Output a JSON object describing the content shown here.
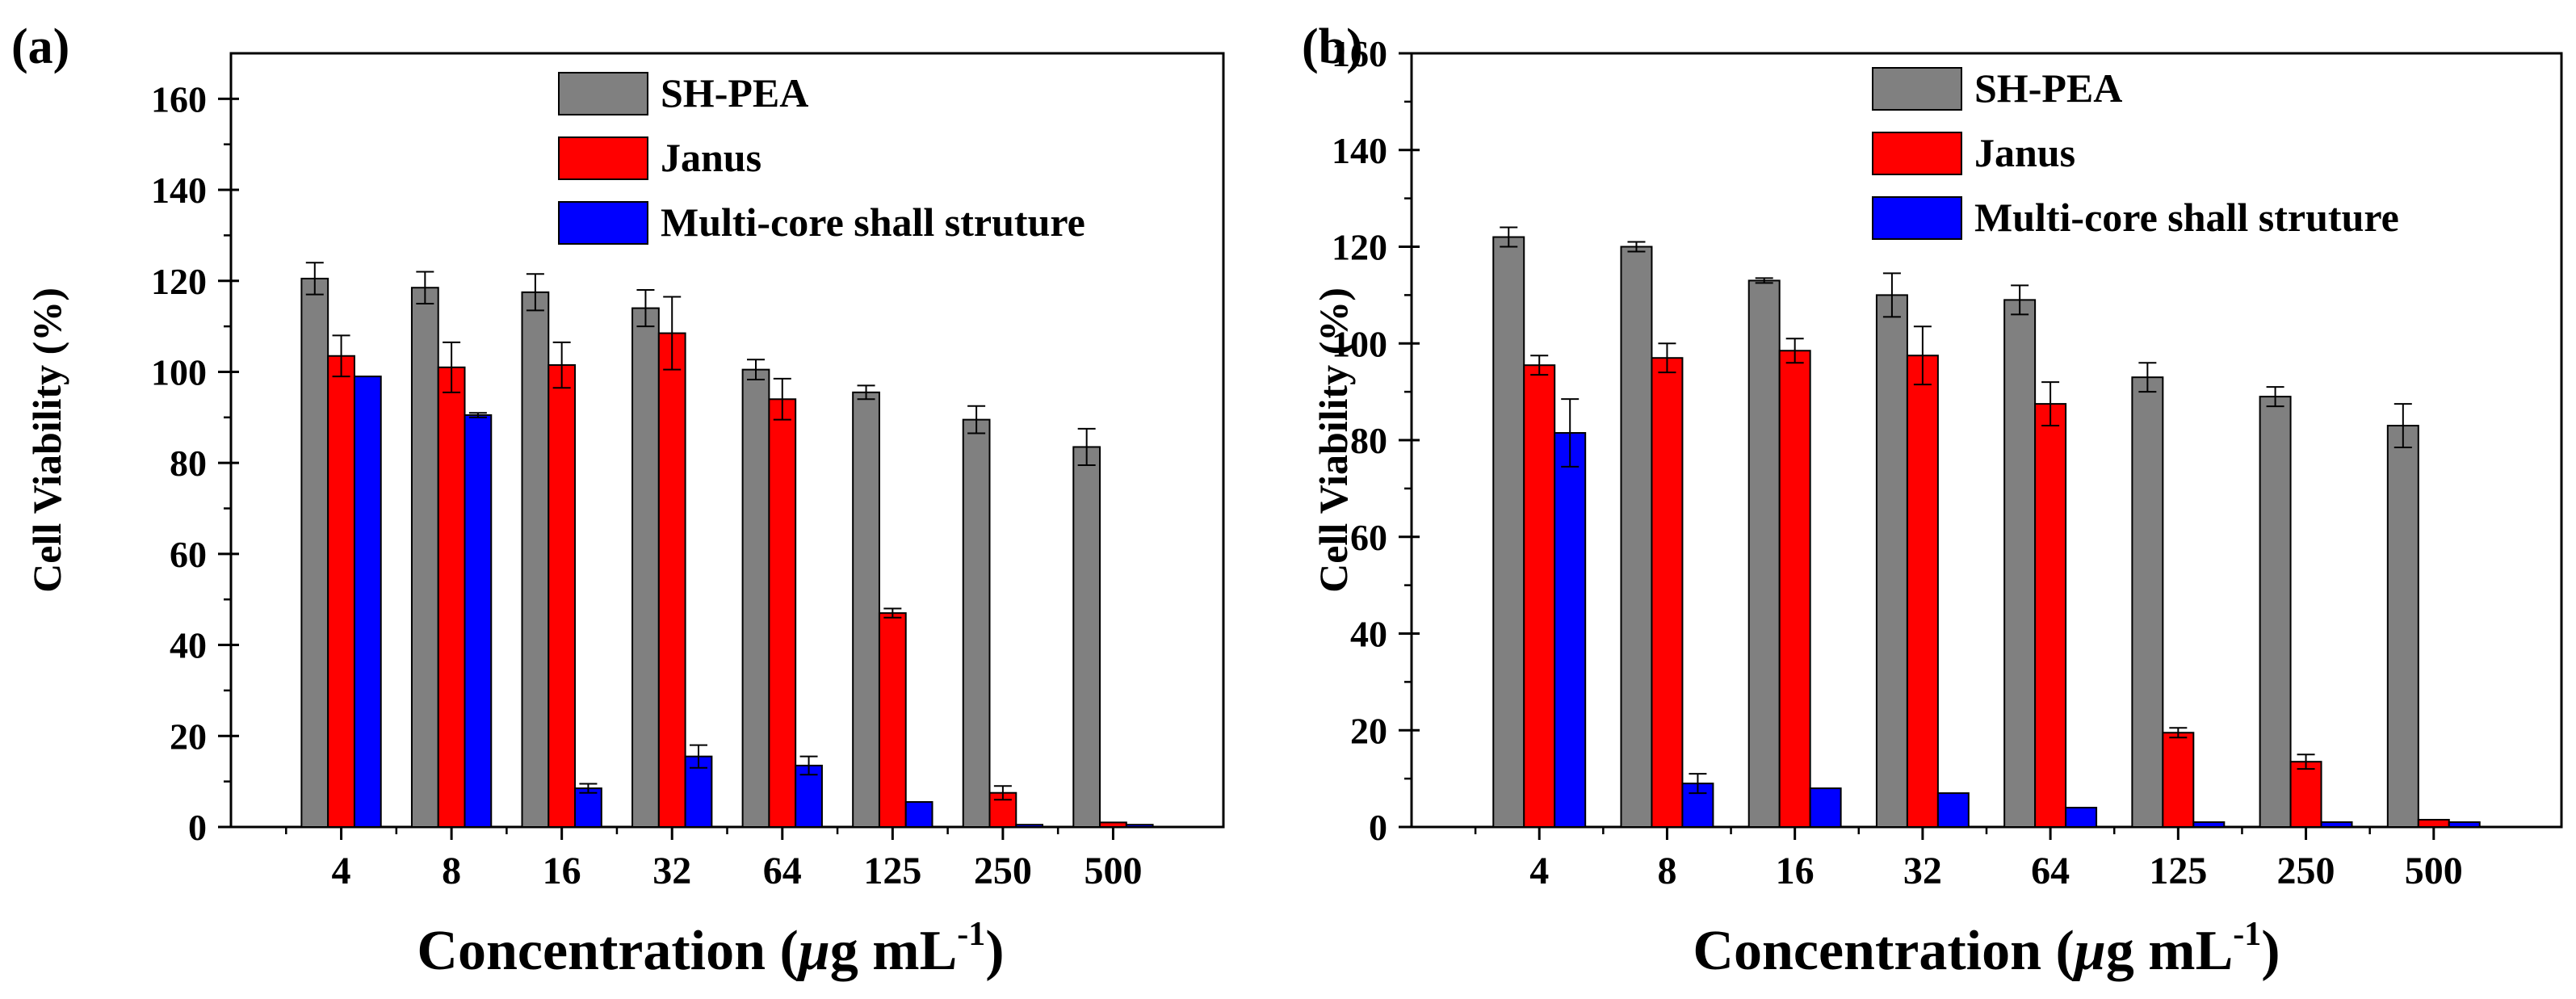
{
  "chart_data": [
    {
      "type": "bar",
      "panel_label": "(a)",
      "title": "",
      "xlabel": "Concentration (",
      "xlabel_italic": "μ",
      "xlabel_unit": "g mL",
      "xlabel_sup": "-1",
      "xlabel_close": ")",
      "ylabel": "Cell Viability (%)",
      "ylim": [
        0,
        170
      ],
      "yticks": [
        0,
        20,
        40,
        60,
        80,
        100,
        120,
        140,
        160
      ],
      "categories": [
        "4",
        "8",
        "16",
        "32",
        "64",
        "125",
        "250",
        "500"
      ],
      "legend_position": "top-center",
      "series": [
        {
          "name": "SH-PEA",
          "color": "#808080",
          "values": [
            120.5,
            118.5,
            117.5,
            114,
            100.5,
            95.5,
            89.5,
            83.5
          ],
          "errors": [
            3.5,
            3.5,
            4,
            4,
            2.2,
            1.5,
            3,
            4
          ]
        },
        {
          "name": "Janus",
          "color": "#ff0000",
          "values": [
            103.5,
            101,
            101.5,
            108.5,
            94,
            47,
            7.5,
            1
          ],
          "errors": [
            4.5,
            5.5,
            5,
            8,
            4.5,
            1,
            1.5,
            0
          ]
        },
        {
          "name": "Multi-core shall struture",
          "color": "#0000ff",
          "values": [
            99,
            90.5,
            8.5,
            15.5,
            13.5,
            5.5,
            0.5,
            0.5
          ],
          "errors": [
            0,
            0.5,
            1,
            2.5,
            2,
            0,
            0,
            0
          ]
        }
      ]
    },
    {
      "type": "bar",
      "panel_label": "(b)",
      "title": "",
      "xlabel": "Concentration (",
      "xlabel_italic": "μ",
      "xlabel_unit": "g mL",
      "xlabel_sup": "-1",
      "xlabel_close": ")",
      "ylabel": "Cell Viability (%)",
      "ylim": [
        0,
        160
      ],
      "yticks": [
        0,
        20,
        40,
        60,
        80,
        100,
        120,
        140,
        160
      ],
      "categories": [
        "4",
        "8",
        "16",
        "32",
        "64",
        "125",
        "250",
        "500"
      ],
      "legend_position": "top-center",
      "series": [
        {
          "name": "SH-PEA",
          "color": "#808080",
          "values": [
            122,
            120,
            113,
            110,
            109,
            93,
            89,
            83
          ],
          "errors": [
            2,
            1,
            0.5,
            4.5,
            3,
            3,
            2,
            4.5
          ]
        },
        {
          "name": "Janus",
          "color": "#ff0000",
          "values": [
            95.5,
            97,
            98.5,
            97.5,
            87.5,
            19.5,
            13.5,
            1.5
          ],
          "errors": [
            2,
            3,
            2.5,
            6,
            4.5,
            1,
            1.5,
            0
          ]
        },
        {
          "name": "Multi-core shall struture",
          "color": "#0000ff",
          "values": [
            81.5,
            9,
            8,
            7,
            4,
            1,
            1,
            1
          ],
          "errors": [
            7,
            2,
            0,
            0,
            0,
            0,
            0,
            0
          ]
        }
      ]
    }
  ]
}
